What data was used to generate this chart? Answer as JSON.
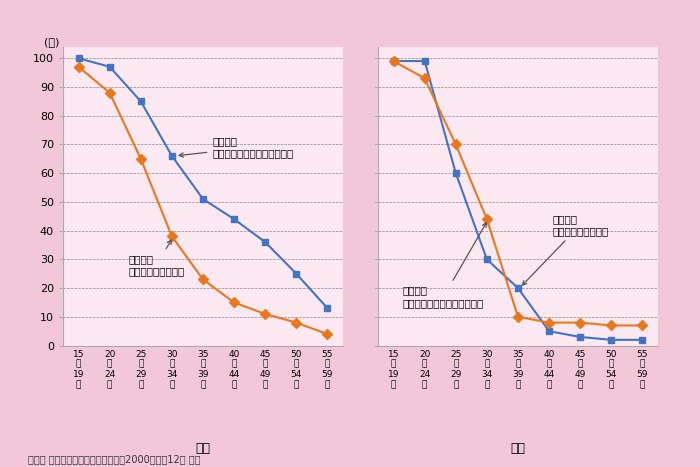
{
  "source": "資料： 総務省統計局『国勢調査』（2000（平成12） 年）",
  "background_color": "#f2c8d8",
  "plot_background_color": "#fce8f0",
  "male_label": "男性",
  "female_label": "女性",
  "x_labels": [
    "15\n～\n19\n歳",
    "20\n～\n24\n歳",
    "25\n～\n29\n歳",
    "30\n～\n34\n歳",
    "35\n～\n39\n歳",
    "40\n～\n44\n歳",
    "45\n～\n49\n歳",
    "50\n～\n54\n歳",
    "55\n～\n59\n歳"
  ],
  "male_joyo": [
    100,
    97,
    85,
    66,
    51,
    44,
    36,
    25,
    13
  ],
  "male_rinji": [
    97,
    88,
    65,
    38,
    23,
    15,
    11,
    8,
    4
  ],
  "female_joyo": [
    99,
    99,
    60,
    30,
    20,
    5,
    3,
    2,
    2
  ],
  "female_rinji": [
    99,
    93,
    70,
    44,
    10,
    8,
    8,
    7,
    7
  ],
  "blue_color": "#4472c4",
  "orange_color": "#e87820",
  "yticks": [
    0,
    10,
    20,
    30,
    40,
    50,
    60,
    70,
    80,
    90,
    100
  ],
  "annotation_male_rinji_text": "臨時雇用\n（パートタイム雇用に相当）",
  "annotation_male_joyo_text": "常用雇用\n（一般労働に相当）",
  "annotation_female_joyo_text": "常用雇用\n（一般労働に相当）",
  "annotation_female_rinji_text": "臨時雇用\n（パートタイム雇用に相当）",
  "ylabel": "(％)"
}
